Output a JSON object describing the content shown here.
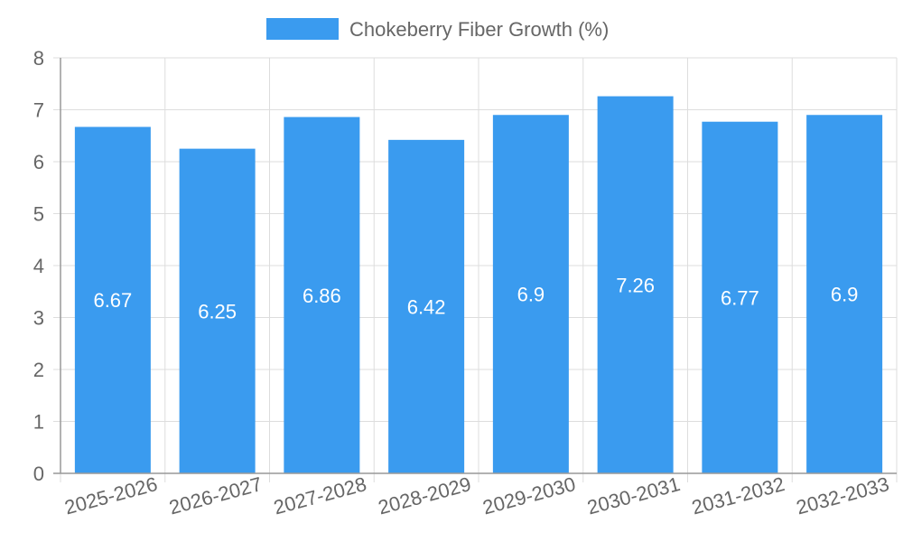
{
  "chart_data": {
    "type": "bar",
    "categories": [
      "2025-2026",
      "2026-2027",
      "2027-2028",
      "2028-2029",
      "2029-2030",
      "2030-2031",
      "2031-2032",
      "2032-2033"
    ],
    "series": [
      {
        "name": "Chokeberry Fiber Growth (%)",
        "values": [
          6.67,
          6.25,
          6.86,
          6.42,
          6.9,
          7.26,
          6.77,
          6.9
        ]
      }
    ],
    "title": "",
    "xlabel": "",
    "ylabel": "",
    "ylim": [
      0,
      8
    ],
    "yticks": [
      0,
      1,
      2,
      3,
      4,
      5,
      6,
      7,
      8
    ],
    "grid": true,
    "legend_position": "top",
    "data_labels": true,
    "x_tick_rotation": "slanted",
    "colors": {
      "bar": "#3a9bef",
      "grid": "#dddddd",
      "axis": "#999999",
      "text": "#666666",
      "data_label": "#ffffff"
    }
  }
}
